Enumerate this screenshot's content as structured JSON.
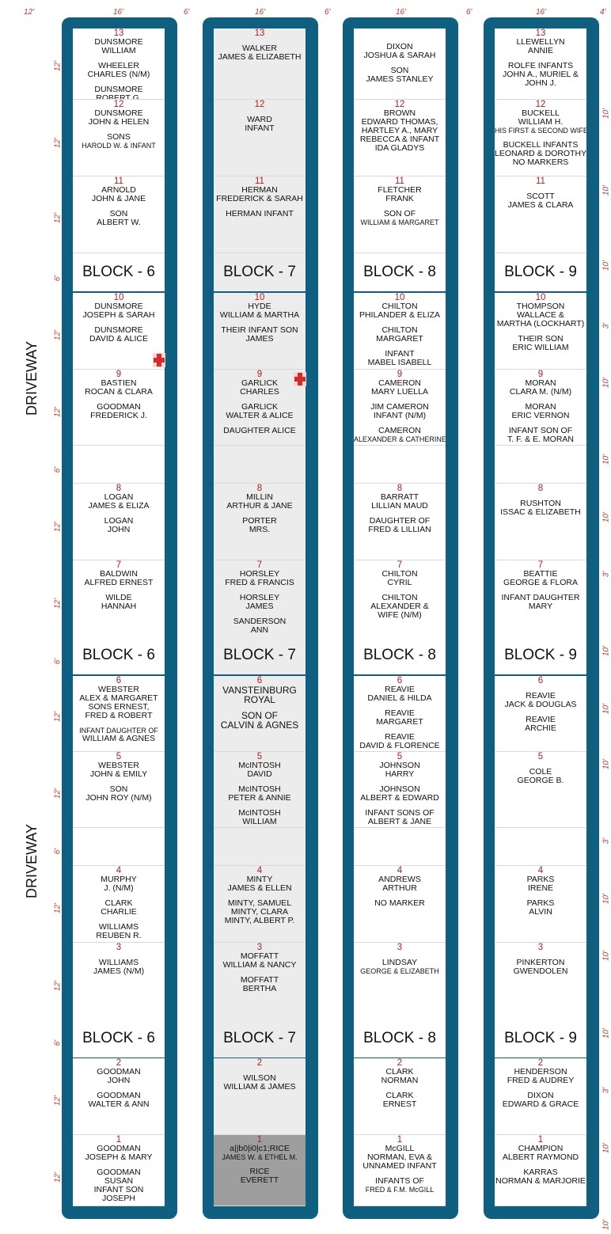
{
  "dims": {
    "top": [
      "12'",
      "16'",
      "6'",
      "16'",
      "6'",
      "16'",
      "6'",
      "16'",
      "4'"
    ],
    "left": [
      "12'",
      "12'",
      "12'",
      "6'",
      "12'",
      "12'",
      "6'",
      "12'",
      "12'",
      "6'",
      "12'",
      "12'",
      "6'",
      "12'",
      "12'",
      "6'",
      "12'",
      "12'"
    ],
    "right": [
      "10'",
      "10'",
      "10'",
      "3'",
      "10'",
      "10'",
      "10'",
      "3'",
      "10'",
      "10'",
      "10'",
      "3'",
      "10'",
      "10'",
      "10'",
      "3'",
      "10'",
      "10'"
    ]
  },
  "driveway": [
    "DRIVEWAY",
    "DRIVEWAY"
  ],
  "blocks": [
    {
      "id": "6",
      "banners": [
        "BLOCK - 6",
        "BLOCK - 6",
        "BLOCK - 6"
      ],
      "rows": [
        {
          "lines": [
            "13",
            "DUNSMORE",
            "WILLIAM",
            "",
            "WHEELER",
            "CHARLES (N/M)",
            "",
            "DUNSMORE",
            "ROBERT G."
          ]
        },
        {
          "lines": [
            "12",
            "DUNSMORE",
            "JOHN & HELEN",
            "",
            "SONS",
            "HAROLD W. & INFANT"
          ]
        },
        {
          "lines": [
            "11",
            "ARNOLD",
            "JOHN & JANE",
            "",
            "SON",
            "ALBERT W."
          ]
        },
        {
          "lines": [
            "10",
            "DUNSMORE",
            "JOSEPH & SARAH",
            "",
            "DUNSMORE",
            "DAVID & ALICE"
          ]
        },
        {
          "lines": [
            "9",
            "BASTIEN",
            "ROCAN & CLARA",
            "",
            "GOODMAN",
            "FREDERICK J."
          ]
        },
        {
          "lines": []
        },
        {
          "lines": [
            "8",
            "LOGAN",
            "JAMES & ELIZA",
            "",
            "LOGAN",
            "JOHN"
          ]
        },
        {
          "lines": [
            "7",
            "BALDWIN",
            "ALFRED ERNEST",
            "",
            "WILDE",
            "HANNAH"
          ]
        },
        {
          "lines": [
            "6",
            "WEBSTER",
            "ALEX & MARGARET",
            "SONS ERNEST,",
            "FRED & ROBERT",
            "",
            "INFANT DAUGHTER OF",
            "WILLIAM & AGNES"
          ]
        },
        {
          "lines": [
            "5",
            "WEBSTER",
            "JOHN & EMILY",
            "",
            "SON",
            "JOHN ROY (N/M)"
          ]
        },
        {
          "lines": []
        },
        {
          "lines": [
            "4",
            "MURPHY",
            "J. (N/M)",
            "",
            "CLARK",
            "CHARLIE",
            "",
            "WILLIAMS",
            "REUBEN R."
          ]
        },
        {
          "lines": [
            "3",
            "",
            "WILLIAMS",
            "JAMES (N/M)"
          ]
        },
        {
          "lines": [
            "2",
            "GOODMAN",
            "JOHN",
            "",
            "GOODMAN",
            "WALTER & ANN"
          ]
        },
        {
          "lines": [
            "1",
            "GOODMAN",
            "JOSEPH & MARY",
            "",
            "GOODMAN",
            "SUSAN",
            "INFANT SON",
            "JOSEPH"
          ]
        }
      ]
    },
    {
      "id": "7",
      "banners": [
        "BLOCK - 7",
        "BLOCK - 7",
        "BLOCK - 7"
      ],
      "rows": [
        {
          "lines": [
            "13",
            "",
            "WALKER",
            "JAMES & ELIZABETH"
          ]
        },
        {
          "lines": [
            "12",
            "",
            "WARD",
            "INFANT"
          ]
        },
        {
          "lines": [
            "11",
            "HERMAN",
            "FREDERICK & SARAH",
            "",
            "HERMAN INFANT"
          ]
        },
        {
          "lines": [
            "10",
            "HYDE",
            "WILLIAM & MARTHA",
            "",
            "THEIR INFANT SON",
            "JAMES"
          ]
        },
        {
          "lines": [
            "9",
            "GARLICK",
            "CHARLES",
            "",
            "GARLICK",
            "WALTER & ALICE",
            "",
            "DAUGHTER ALICE"
          ]
        },
        {
          "lines": []
        },
        {
          "lines": [
            "8",
            "MILLIN",
            "ARTHUR & JANE",
            "",
            "PORTER",
            "MRS."
          ]
        },
        {
          "lines": [
            "7",
            "HORSLEY",
            "FRED & FRANCIS",
            "",
            "HORSLEY",
            "JAMES",
            "",
            "SANDERSON",
            "ANN"
          ]
        },
        {
          "lines": [
            "6",
            "VANSTEINBURG",
            "ROYAL",
            "",
            "SON OF",
            "CALVIN & AGNES"
          ]
        },
        {
          "lines": [
            "5",
            "McINTOSH",
            "DAVID",
            "",
            "McINTOSH",
            "PETER & ANNIE",
            "",
            "McINTOSH",
            "WILLIAM"
          ]
        },
        {
          "lines": []
        },
        {
          "lines": [
            "4",
            "MINTY",
            "JAMES & ELLEN",
            "",
            "MINTY, SAMUEL",
            "MINTY, CLARA",
            "MINTY, ALBERT P."
          ]
        },
        {
          "lines": [
            "3",
            "MOFFATT",
            "WILLIAM & NANCY",
            "",
            "MOFFATT",
            "BERTHA"
          ]
        },
        {
          "lines": [
            "2",
            "",
            "WILSON",
            "WILLIAM & JAMES"
          ]
        },
        {
          "lines": [
            "1",
            "a||b0|i0|c1;RICE",
            "JAMES W. & ETHEL M.",
            "",
            "RICE",
            "EVERETT"
          ]
        }
      ]
    },
    {
      "id": "8",
      "banners": [
        "BLOCK - 8",
        "BLOCK - 8",
        "BLOCK - 8"
      ],
      "rows": [
        {
          "lines": [
            "DIXON",
            "JOSHUA & SARAH",
            "",
            "SON",
            "JAMES STANLEY"
          ]
        },
        {
          "lines": [
            "12",
            "BROWN",
            "EDWARD THOMAS,",
            "HARTLEY A., MARY",
            "REBECCA & INFANT",
            "IDA GLADYS"
          ]
        },
        {
          "lines": [
            "11",
            "FLETCHER",
            "FRANK",
            "",
            "SON OF",
            "WILLIAM & MARGARET"
          ]
        },
        {
          "lines": [
            "10",
            "CHILTON",
            "PHILANDER & ELIZA",
            "",
            "CHILTON",
            "MARGARET",
            "",
            "INFANT",
            "MABEL ISABELL"
          ]
        },
        {
          "lines": [
            "9",
            "CAMERON",
            "MARY LUELLA",
            "",
            "JIM CAMERON",
            "INFANT (N/M)",
            "",
            "CAMERON",
            "ALEXANDER & CATHERINE"
          ]
        },
        {
          "lines": []
        },
        {
          "lines": [
            "8",
            "BARRATT",
            "LILLIAN MAUD",
            "",
            "DAUGHTER OF",
            "FRED & LILLIAN"
          ]
        },
        {
          "lines": [
            "7",
            "CHILTON",
            "CYRIL",
            "",
            "CHILTON",
            "ALEXANDER &",
            "WIFE (N/M)"
          ]
        },
        {
          "lines": [
            "6",
            "REAVIE",
            "DANIEL & HILDA",
            "",
            "REAVIE",
            "MARGARET",
            "",
            "REAVIE",
            "DAVID & FLORENCE"
          ]
        },
        {
          "lines": [
            "5",
            "JOHNSON",
            "HARRY",
            "",
            "JOHNSON",
            "ALBERT & EDWARD",
            "",
            "INFANT SONS OF",
            "ALBERT & JANE"
          ]
        },
        {
          "lines": []
        },
        {
          "lines": [
            "4",
            "ANDREWS",
            "ARTHUR",
            "",
            "NO MARKER"
          ]
        },
        {
          "lines": [
            "3",
            "",
            "LINDSAY",
            "GEORGE & ELIZABETH"
          ]
        },
        {
          "lines": [
            "2",
            "CLARK",
            "NORMAN",
            "",
            "CLARK",
            "ERNEST"
          ]
        },
        {
          "lines": [
            "1",
            "McGILL",
            "NORMAN, EVA &",
            "UNNAMED INFANT",
            "",
            "INFANTS OF",
            "FRED & F.M. McGILL"
          ]
        }
      ]
    },
    {
      "id": "9",
      "banners": [
        "BLOCK - 9",
        "BLOCK - 9",
        "BLOCK - 9"
      ],
      "rows": [
        {
          "lines": [
            "13",
            "LLEWELLYN",
            "ANNIE",
            "",
            "ROLFE INFANTS",
            "JOHN A., MURIEL &",
            "JOHN J."
          ]
        },
        {
          "lines": [
            "12",
            "BUCKELL",
            "WILLIAM H.",
            "HIS FIRST & SECOND WIFE",
            "",
            "BUCKELL INFANTS",
            "LEONARD & DOROTHY",
            "NO MARKERS"
          ]
        },
        {
          "lines": [
            "11",
            "",
            "SCOTT",
            "JAMES & CLARA"
          ]
        },
        {
          "lines": [
            "10",
            "THOMPSON",
            "WALLACE &",
            "MARTHA (LOCKHART)",
            "",
            "THEIR SON",
            "ERIC WILLIAM"
          ]
        },
        {
          "lines": [
            "9",
            "MORAN",
            "CLARA M. (N/M)",
            "",
            "MORAN",
            "ERIC VERNON",
            "",
            "INFANT SON OF",
            "T. F. & E. MORAN"
          ]
        },
        {
          "lines": []
        },
        {
          "lines": [
            "8",
            "",
            "RUSHTON",
            "ISSAC & ELIZABETH"
          ]
        },
        {
          "lines": [
            "7",
            "BEATTIE",
            "GEORGE & FLORA",
            "",
            "INFANT DAUGHTER",
            "MARY"
          ]
        },
        {
          "lines": [
            "6",
            "",
            "REAVIE",
            "JACK & DOUGLAS",
            "",
            "REAVIE",
            "ARCHIE"
          ]
        },
        {
          "lines": [
            "5",
            "",
            "COLE",
            "GEORGE B."
          ]
        },
        {
          "lines": []
        },
        {
          "lines": [
            "4",
            "PARKS",
            "IRENE",
            "",
            "PARKS",
            "ALVIN"
          ]
        },
        {
          "lines": [
            "3",
            "",
            "PINKERTON",
            "GWENDOLEN"
          ]
        },
        {
          "lines": [
            "2",
            "HENDERSON",
            "FRED & AUDREY",
            "",
            "DIXON",
            "EDWARD & GRACE"
          ]
        },
        {
          "lines": [
            "1",
            "CHAMPION",
            "ALBERT RAYMOND",
            "",
            "KARRAS",
            "NORMAN & MARJORIE"
          ]
        }
      ]
    }
  ],
  "colors": {
    "frame": "#0e5f80",
    "number": "#b01f1f",
    "dimension": "#c0392b",
    "marker": "#d42b2b"
  }
}
